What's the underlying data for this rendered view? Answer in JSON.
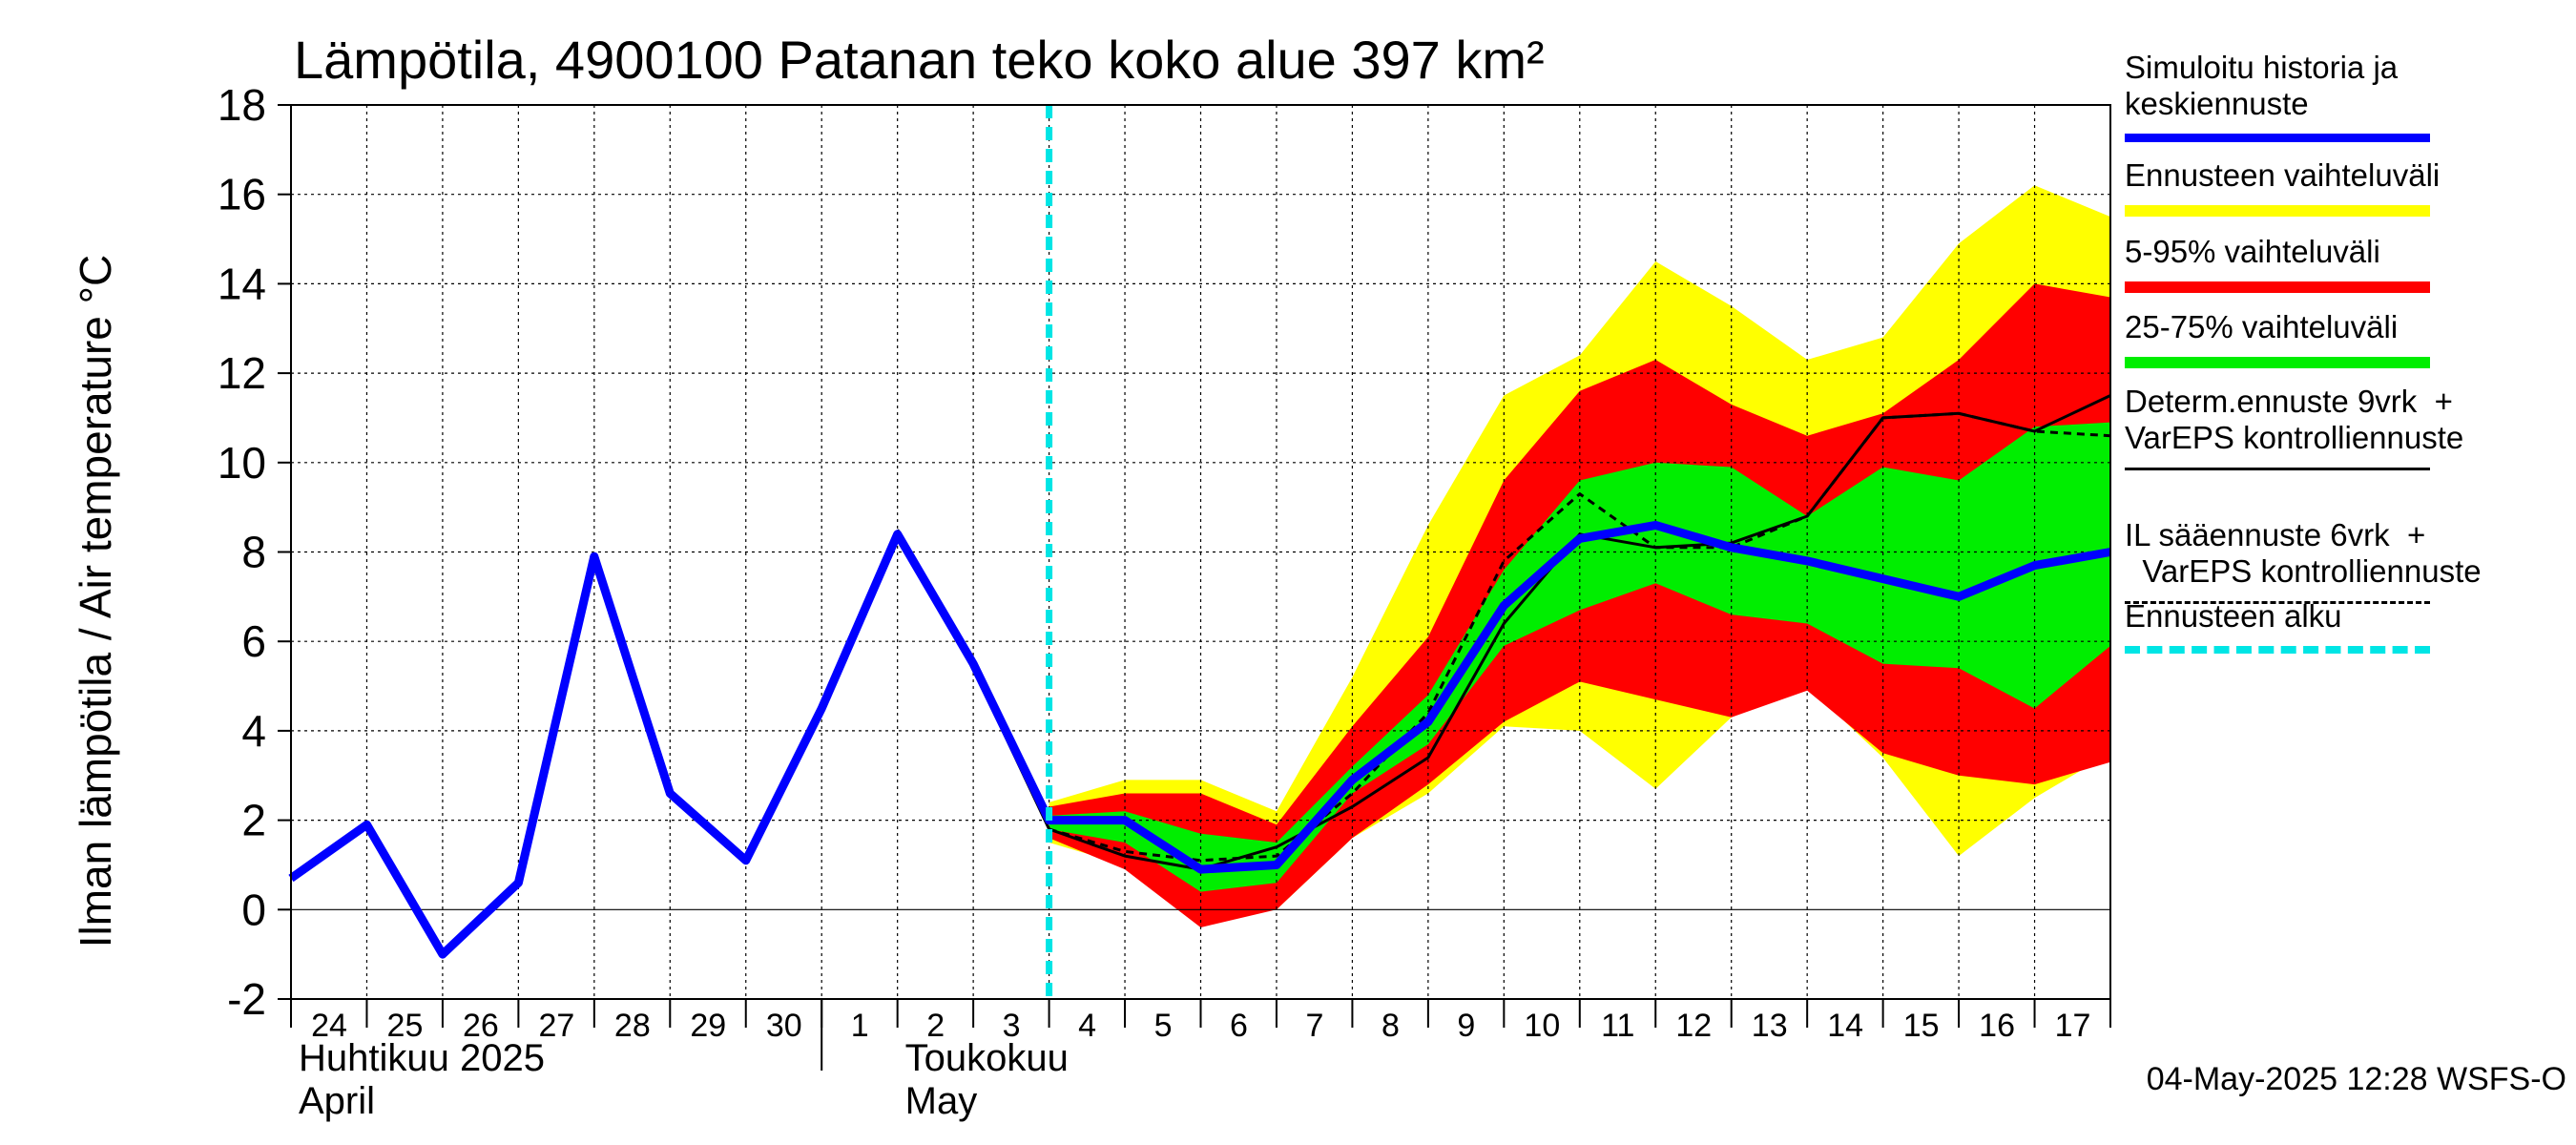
{
  "title": "Lämpötila, 4900100 Patanan teko koko alue 397 km²",
  "ylabel": "Ilman lämpötila / Air temperature    °C",
  "timestamp": "04-May-2025 12:28 WSFS-O",
  "colors": {
    "history": "#0000ff",
    "range_full": "#ffff00",
    "range_5_95": "#ff0000",
    "range_25_75": "#00ee00",
    "deterministic": "#000000",
    "forecast_start": "#00e5e5",
    "grid": "#000000"
  },
  "legend": [
    {
      "label": "Simuloitu historia ja\nkeskiennuste",
      "kind": "history"
    },
    {
      "label": "Ennusteen vaihteluväli",
      "kind": "range_full"
    },
    {
      "label": "5-95% vaihteluväli",
      "kind": "range_5_95"
    },
    {
      "label": "25-75% vaihteluväli",
      "kind": "range_25_75"
    },
    {
      "label": "Determ.ennuste 9vrk  +\nVarEPS kontrolliennuste",
      "kind": "deterministic"
    },
    {
      "label": "IL sääennuste 6vrk  +\n  VarEPS kontrolliennuste",
      "kind": "il_forecast"
    },
    {
      "label": "Ennusteen alku",
      "kind": "forecast_start"
    }
  ],
  "chart_data": {
    "type": "line",
    "ylim": [
      -2,
      18
    ],
    "yticks": [
      -2,
      0,
      2,
      4,
      6,
      8,
      10,
      12,
      14,
      16,
      18
    ],
    "xlim": [
      0,
      24
    ],
    "grid": true,
    "legend_position": "right",
    "x_tick_labels": [
      "24",
      "25",
      "26",
      "27",
      "28",
      "29",
      "30",
      "1",
      "2",
      "3",
      "4",
      "5",
      "6",
      "7",
      "8",
      "9",
      "10",
      "11",
      "12",
      "13",
      "14",
      "15",
      "16",
      "17"
    ],
    "month_labels": [
      {
        "text": "Huhtikuu  2025",
        "sub": "April",
        "day_index": 0
      },
      {
        "text": "Toukokuu",
        "sub": "May",
        "day_index": 8
      }
    ],
    "month_divider_day_index": 7,
    "forecast_start_x": 10,
    "history_series": {
      "name": "Simuloitu historia ja keskiennuste",
      "x": [
        0,
        1,
        2,
        3,
        4,
        5,
        6,
        7,
        8,
        9,
        10,
        11,
        12,
        13,
        14,
        15,
        16,
        17,
        18,
        19,
        20,
        21,
        22,
        23,
        24
      ],
      "y": [
        0.7,
        1.9,
        -1.0,
        0.6,
        7.9,
        2.6,
        1.1,
        4.5,
        8.4,
        5.5,
        2.0,
        2.0,
        0.9,
        1.0,
        2.9,
        4.2,
        6.8,
        8.3,
        8.6,
        8.1,
        7.8,
        7.4,
        7.0,
        7.7,
        8.0
      ]
    },
    "range_full": {
      "x": [
        10,
        11,
        12,
        13,
        14,
        15,
        16,
        17,
        18,
        19,
        20,
        21,
        22,
        23,
        24
      ],
      "upper": [
        2.4,
        2.9,
        2.9,
        2.2,
        5.2,
        8.6,
        11.5,
        12.4,
        14.5,
        13.5,
        12.3,
        12.8,
        14.9,
        16.2,
        15.5
      ],
      "lower": [
        1.5,
        1.0,
        -0.3,
        0.0,
        1.6,
        2.6,
        4.1,
        4.0,
        2.7,
        4.3,
        5.0,
        3.4,
        1.2,
        2.5,
        3.5
      ]
    },
    "range_5_95": {
      "x": [
        10,
        11,
        12,
        13,
        14,
        15,
        16,
        17,
        18,
        19,
        20,
        21,
        22,
        23,
        24
      ],
      "upper": [
        2.3,
        2.6,
        2.6,
        1.9,
        4.1,
        6.1,
        9.6,
        11.6,
        12.3,
        11.3,
        10.6,
        11.1,
        12.3,
        14.0,
        13.7
      ],
      "lower": [
        1.6,
        0.9,
        -0.4,
        0.0,
        1.6,
        2.8,
        4.2,
        5.1,
        4.7,
        4.3,
        4.9,
        3.5,
        3.0,
        2.8,
        3.3
      ]
    },
    "range_25_75": {
      "x": [
        10,
        11,
        12,
        13,
        14,
        15,
        16,
        17,
        18,
        19,
        20,
        21,
        22,
        23,
        24
      ],
      "upper": [
        2.1,
        2.2,
        1.7,
        1.5,
        3.2,
        4.8,
        7.6,
        9.6,
        10.0,
        9.9,
        8.8,
        9.9,
        9.6,
        10.8,
        10.9
      ],
      "lower": [
        1.8,
        1.5,
        0.4,
        0.6,
        2.6,
        3.7,
        5.9,
        6.7,
        7.3,
        6.6,
        6.4,
        5.5,
        5.4,
        4.5,
        5.9
      ]
    },
    "deterministic_series": {
      "name": "Determ.ennuste 9vrk + VarEPS kontrolliennuste",
      "x": [
        8,
        9,
        10,
        11,
        12,
        13,
        14,
        15,
        16,
        17,
        18,
        19,
        20,
        21,
        22,
        23,
        24
      ],
      "y": [
        8.5,
        5.4,
        1.8,
        1.2,
        0.9,
        1.4,
        2.3,
        3.4,
        6.4,
        8.4,
        8.1,
        8.2,
        8.8,
        11.0,
        11.1,
        10.7,
        11.5
      ]
    },
    "il_forecast_series": {
      "name": "IL sääennuste 6vrk + VarEPS kontrolliennuste",
      "x": [
        10,
        11,
        12,
        13,
        14,
        15,
        16,
        17,
        18,
        19,
        20,
        21,
        22,
        23,
        24
      ],
      "y": [
        1.8,
        1.3,
        1.1,
        1.2,
        2.6,
        4.4,
        7.8,
        9.3,
        8.1,
        8.1,
        8.8,
        11.0,
        11.1,
        10.7,
        10.6
      ]
    }
  }
}
